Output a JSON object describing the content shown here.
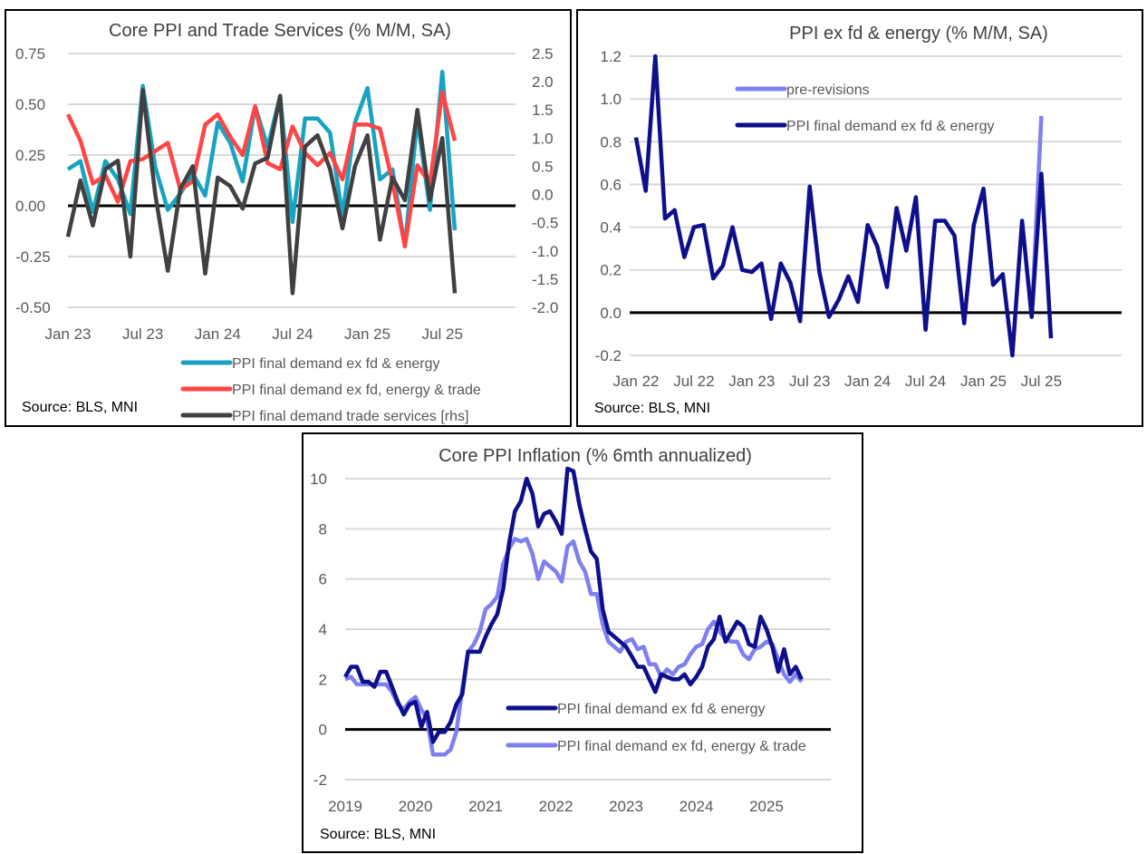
{
  "chart_data": [
    {
      "type": "line",
      "title": "Core PPI and Trade Services (% M/M, SA)",
      "x": [
        "Jan 23",
        "Feb 23",
        "Mar 23",
        "Apr 23",
        "May 23",
        "Jun 23",
        "Jul 23",
        "Aug 23",
        "Sep 23",
        "Oct 23",
        "Nov 23",
        "Dec 23",
        "Jan 24",
        "Feb 24",
        "Mar 24",
        "Apr 24",
        "May 24",
        "Jun 24",
        "Jul 24",
        "Aug 24",
        "Sep 24",
        "Oct 24",
        "Nov 24",
        "Dec 24",
        "Jan 25",
        "Feb 25",
        "Mar 25",
        "Apr 25",
        "May 25",
        "Jun 25",
        "Jul 25",
        "Aug 25"
      ],
      "xticks": [
        "Jan 23",
        "Jul 23",
        "Jan 24",
        "Jul 24",
        "Jan 25",
        "Jul 25"
      ],
      "yticks_left": [
        "0.75",
        "0.50",
        "0.25",
        "0.00",
        "-0.25",
        "-0.50"
      ],
      "yticks_right": [
        "2.5",
        "2.0",
        "1.5",
        "1.0",
        "0.5",
        "0.0",
        "-0.5",
        "-1.0",
        "-1.5",
        "-2.0"
      ],
      "ylim_left": [
        -0.5,
        0.75
      ],
      "ylim_right": [
        -2.0,
        2.5
      ],
      "grid": true,
      "legend_position": "bottom-right",
      "series": [
        {
          "name": "PPI final demand ex fd & energy",
          "axis": "left",
          "color": "#17a3c1",
          "values": [
            0.18,
            0.22,
            -0.03,
            0.22,
            0.13,
            -0.04,
            0.59,
            0.19,
            -0.02,
            0.06,
            0.16,
            0.05,
            0.41,
            0.31,
            0.12,
            0.49,
            0.29,
            0.54,
            -0.08,
            0.43,
            0.43,
            0.36,
            -0.05,
            0.41,
            0.58,
            0.13,
            0.18,
            -0.2,
            0.43,
            -0.02,
            0.66,
            -0.12
          ]
        },
        {
          "name": "PPI final demand ex fd, energy & trade",
          "axis": "left",
          "color": "#ff4545",
          "values": [
            0.45,
            0.32,
            0.11,
            0.15,
            0.02,
            0.22,
            0.23,
            0.27,
            0.31,
            0.08,
            0.12,
            0.4,
            0.45,
            0.34,
            0.25,
            0.49,
            0.21,
            0.18,
            0.39,
            0.26,
            0.2,
            0.26,
            0.13,
            0.4,
            0.4,
            0.38,
            0.12,
            -0.2,
            0.2,
            0.11,
            0.56,
            0.32
          ]
        },
        {
          "name": "PPI final demand trade services [rhs]",
          "axis": "right",
          "color": "#404040",
          "values": [
            -0.75,
            0.25,
            -0.55,
            0.45,
            0.6,
            -1.1,
            1.85,
            0.0,
            -1.35,
            0.1,
            0.5,
            -1.4,
            0.3,
            0.15,
            -0.25,
            0.55,
            0.65,
            1.75,
            -1.75,
            0.85,
            1.05,
            0.45,
            -0.6,
            0.5,
            1.05,
            -0.8,
            0.3,
            -0.1,
            1.5,
            -0.1,
            1.0,
            -1.75
          ]
        }
      ],
      "source": "Source: BLS, MNI"
    },
    {
      "type": "line",
      "title": "PPI ex fd & energy (% M/M, SA)",
      "xticks": [
        "Jan 22",
        "Jul 22",
        "Jan 23",
        "Jul 23",
        "Jan 24",
        "Jul 24",
        "Jan 25",
        "Jul 25"
      ],
      "yticks": [
        "1.2",
        "1.0",
        "0.8",
        "0.6",
        "0.4",
        "0.2",
        "0.0",
        "-0.2"
      ],
      "ylim": [
        -0.2,
        1.2
      ],
      "grid": true,
      "legend_position": "top-center",
      "series": [
        {
          "name": "pre-revisions",
          "color": "#7f7ff0",
          "values": [
            null,
            null,
            null,
            null,
            null,
            null,
            null,
            null,
            null,
            null,
            null,
            null,
            null,
            null,
            null,
            null,
            null,
            null,
            null,
            null,
            null,
            null,
            null,
            null,
            null,
            null,
            null,
            null,
            null,
            null,
            null,
            null,
            null,
            null,
            null,
            null,
            null,
            null,
            null,
            null,
            null,
            null,
            null,
            null,
            null,
            null,
            null,
            null,
            null,
            null,
            null,
            null,
            null,
            -0.02,
            0.92,
            null
          ]
        },
        {
          "name": "PPI final demand ex fd & energy",
          "color": "#0f0f8c",
          "values": [
            0.82,
            0.57,
            1.2,
            0.44,
            0.48,
            0.26,
            0.4,
            0.41,
            0.16,
            0.22,
            0.4,
            0.2,
            0.19,
            0.23,
            -0.03,
            0.23,
            0.14,
            -0.04,
            0.59,
            0.19,
            -0.02,
            0.06,
            0.17,
            0.05,
            0.41,
            0.31,
            0.12,
            0.49,
            0.29,
            0.54,
            -0.08,
            0.43,
            0.43,
            0.36,
            -0.05,
            0.41,
            0.58,
            0.13,
            0.18,
            -0.2,
            0.43,
            -0.02,
            0.65,
            -0.12
          ]
        }
      ],
      "source": "Source: BLS, MNI"
    },
    {
      "type": "line",
      "title": "Core PPI Inflation (% 6mth annualized)",
      "xticks": [
        "2019",
        "2020",
        "2021",
        "2022",
        "2023",
        "2024",
        "2025"
      ],
      "yticks": [
        "10",
        "8",
        "6",
        "4",
        "2",
        "0",
        "-2"
      ],
      "ylim": [
        -2,
        10
      ],
      "grid": true,
      "legend_position": "bottom-right",
      "series": [
        {
          "name": "PPI final demand ex fd & energy",
          "color": "#0f0f8c",
          "values": [
            2.1,
            2.5,
            2.5,
            1.9,
            1.9,
            1.7,
            2.3,
            2.3,
            1.7,
            1.1,
            0.6,
            1.0,
            1.1,
            0.1,
            0.7,
            -0.5,
            -0.1,
            -0.1,
            0.3,
            1.0,
            1.4,
            3.1,
            3.1,
            3.1,
            3.7,
            4.2,
            4.6,
            5.6,
            7.4,
            8.7,
            9.1,
            10.0,
            9.4,
            8.1,
            8.6,
            8.7,
            8.3,
            7.8,
            10.4,
            10.3,
            9.0,
            8.0,
            7.1,
            6.8,
            4.8,
            3.9,
            3.7,
            3.5,
            3.3,
            2.9,
            2.5,
            2.5,
            2.0,
            1.5,
            2.2,
            2.1,
            2.0,
            2.0,
            2.2,
            1.8,
            2.1,
            2.5,
            3.3,
            3.6,
            4.5,
            3.5,
            3.9,
            4.3,
            4.1,
            3.4,
            3.3,
            4.5,
            4.0,
            3.3,
            2.3,
            3.2,
            2.2,
            2.5,
            2.0
          ]
        },
        {
          "name": "PPI final demand ex fd, energy & trade",
          "color": "#7f7ff0",
          "values": [
            2.0,
            2.1,
            1.8,
            1.8,
            1.8,
            1.8,
            1.8,
            1.8,
            1.5,
            1.0,
            0.8,
            1.1,
            1.3,
            0.8,
            0.4,
            -1.0,
            -1.0,
            -1.0,
            -0.8,
            -0.1,
            1.6,
            3.1,
            3.4,
            3.9,
            4.8,
            5.0,
            5.3,
            6.6,
            7.2,
            7.6,
            7.5,
            7.6,
            7.0,
            6.0,
            6.7,
            6.5,
            6.3,
            5.9,
            7.3,
            7.5,
            6.7,
            6.3,
            5.4,
            5.4,
            4.2,
            3.5,
            3.3,
            3.1,
            3.5,
            3.6,
            3.2,
            3.3,
            2.6,
            2.6,
            2.1,
            2.4,
            2.2,
            2.5,
            2.6,
            3.0,
            3.3,
            3.4,
            4.0,
            4.3,
            3.9,
            3.6,
            3.5,
            3.5,
            3.0,
            2.8,
            3.2,
            3.3,
            3.5,
            3.4,
            2.8,
            2.2,
            1.9,
            2.2,
            1.9
          ]
        }
      ],
      "source": "Source: BLS, MNI"
    }
  ]
}
